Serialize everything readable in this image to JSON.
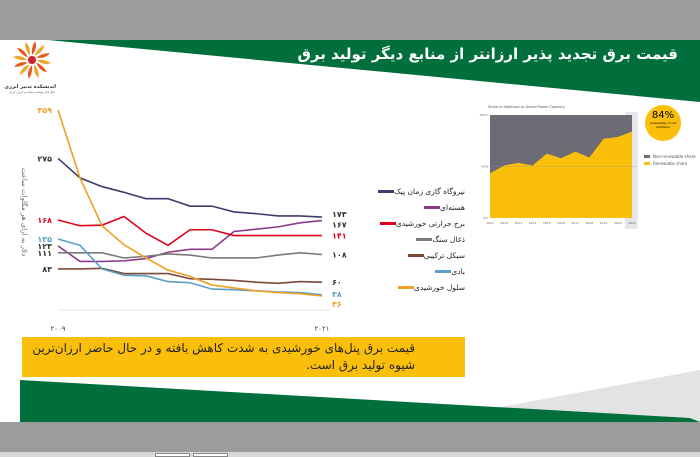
{
  "title": "قیمت برق تجدید پذیر ارزانتر از منابع دیگر تولید برق",
  "logo": {
    "name": "اندیشکده تدبیر انرژی",
    "sub": "اتاق فکر توسعه صنعت و انرژی ایران"
  },
  "note": "قیمت برق پنل‌های خورشیدی به شدت کاهش یافته و در حال حاضر ارزان‌ترین شیوه تولید برق است.",
  "colors": {
    "green": "#006f3c",
    "yellow": "#f9bf0a",
    "gray": "#9c9c9c"
  },
  "chart_data": [
    {
      "type": "line",
      "ylabel": "دلار به ازای هر مگاوات ساعت",
      "x_start_label": "۲۰۰۹",
      "x_end_label": "۲۰۲۱",
      "x": [
        2009,
        2010,
        2011,
        2012,
        2013,
        2014,
        2015,
        2016,
        2017,
        2018,
        2019,
        2020,
        2021
      ],
      "ylim": [
        36,
        359
      ],
      "series": [
        {
          "name": "نیروگاه گازی زمان پیک",
          "color": "#3d3d6b",
          "start": "۲۷۵",
          "end": "۱۷۳",
          "values": [
            275,
            241,
            226,
            216,
            205,
            205,
            192,
            192,
            182,
            179,
            175,
            175,
            173
          ]
        },
        {
          "name": "هسته‌ای",
          "color": "#8a3c86",
          "start": "۱۲۳",
          "end": "۱۶۷",
          "values": [
            123,
            96,
            96,
            97,
            101,
            112,
            117,
            117,
            148,
            152,
            156,
            163,
            167
          ]
        },
        {
          "name": "برج حرارتی خورشیدی",
          "color": "#e0001b",
          "start": "۱۶۸",
          "end": "۱۴۱",
          "values": [
            168,
            158,
            159,
            174,
            145,
            124,
            151,
            151,
            141,
            141,
            141,
            141,
            141
          ]
        },
        {
          "name": "ذغال سنگ",
          "color": "#7a7a7a",
          "start": "۱۱۱",
          "end": "۱۰۸",
          "values": [
            111,
            111,
            111,
            102,
            105,
            109,
            107,
            102,
            102,
            102,
            107,
            111,
            108
          ]
        },
        {
          "name": "سیکل ترکیبی",
          "color": "#7b4a36",
          "start": "۸۳",
          "end": "۶۰",
          "values": [
            83,
            83,
            84,
            75,
            75,
            75,
            66,
            65,
            63,
            60,
            58,
            61,
            60
          ]
        },
        {
          "name": "بادی",
          "color": "#5b9ec9",
          "start": "۱۳۵",
          "end": "۳۸",
          "values": [
            135,
            124,
            83,
            72,
            71,
            61,
            59,
            48,
            47,
            45,
            43,
            42,
            38
          ]
        },
        {
          "name": "سلول خورشیدی",
          "color": "#f0a023",
          "start": "۳۵۹",
          "end": "۳۶",
          "values": [
            359,
            241,
            158,
            125,
            102,
            81,
            70,
            55,
            50,
            45,
            42,
            40,
            36
          ]
        }
      ]
    },
    {
      "type": "area",
      "title": "Share in Additions to Global Power Capacity",
      "x": [
        "2011",
        "2012",
        "2013",
        "2014",
        "2015",
        "2016",
        "2017",
        "2018",
        "2019",
        "2020",
        "2021"
      ],
      "yticks": [
        "100%",
        "50%",
        "0%"
      ],
      "ylim": [
        0,
        100
      ],
      "series": [
        {
          "name": "Non-renewable share",
          "color": "#6d6c75"
        },
        {
          "name": "Renewable share",
          "color": "#f9bf0a",
          "values": [
            43.5,
            51,
            53.5,
            51,
            62.5,
            58,
            64.5,
            58.7,
            77,
            78.7,
            84
          ]
        }
      ],
      "badge": {
        "value": "84%",
        "text": "renewables in net additions"
      }
    }
  ]
}
